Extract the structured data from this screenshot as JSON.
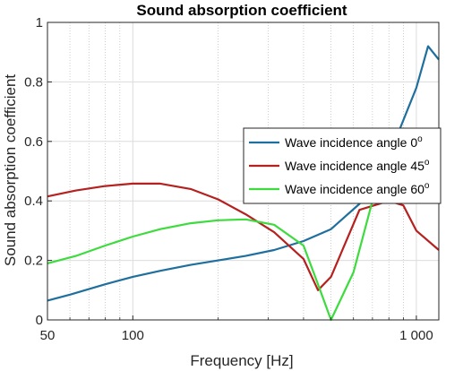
{
  "chart_data": {
    "type": "line",
    "title": "Sound absorption coefficient",
    "xlabel": "Frequency [Hz]",
    "ylabel": "Sound absorption coefficient",
    "x_scale": "log",
    "xlim": [
      50,
      1200
    ],
    "ylim": [
      0,
      1
    ],
    "x_ticks": [
      50,
      100,
      1000
    ],
    "x_tick_labels": [
      "50",
      "100",
      "1 000"
    ],
    "y_ticks": [
      0,
      0.2,
      0.4,
      0.6,
      0.8,
      1
    ],
    "y_tick_labels": [
      "0",
      "0.2",
      "0.4",
      "0.6",
      "0.8",
      "1"
    ],
    "grid": true,
    "legend_position": "right",
    "series": [
      {
        "name": "Wave incidence angle 0",
        "name_sup": "o",
        "color": "#1f6f9e",
        "x": [
          50,
          60,
          80,
          100,
          125,
          160,
          200,
          250,
          315,
          400,
          500,
          630,
          800,
          1000,
          1100,
          1200
        ],
        "y": [
          0.065,
          0.085,
          0.12,
          0.145,
          0.165,
          0.185,
          0.2,
          0.215,
          0.235,
          0.265,
          0.305,
          0.39,
          0.55,
          0.78,
          0.92,
          0.875
        ]
      },
      {
        "name": "Wave incidence angle 45",
        "name_sup": "o",
        "color": "#b5211f",
        "x": [
          50,
          63,
          80,
          100,
          125,
          160,
          200,
          250,
          315,
          400,
          450,
          500,
          630,
          800,
          900,
          1000,
          1200
        ],
        "y": [
          0.415,
          0.435,
          0.45,
          0.458,
          0.458,
          0.44,
          0.405,
          0.355,
          0.295,
          0.205,
          0.1,
          0.145,
          0.37,
          0.4,
          0.385,
          0.3,
          0.235
        ]
      },
      {
        "name": "Wave incidence angle 60",
        "name_sup": "o",
        "color": "#3ddb3d",
        "x": [
          50,
          63,
          80,
          100,
          125,
          160,
          200,
          250,
          315,
          400,
          450,
          500,
          600,
          700,
          800
        ],
        "y": [
          0.19,
          0.215,
          0.25,
          0.28,
          0.305,
          0.325,
          0.335,
          0.338,
          0.32,
          0.25,
          0.12,
          0.0,
          0.16,
          0.4,
          0.41
        ]
      }
    ]
  }
}
